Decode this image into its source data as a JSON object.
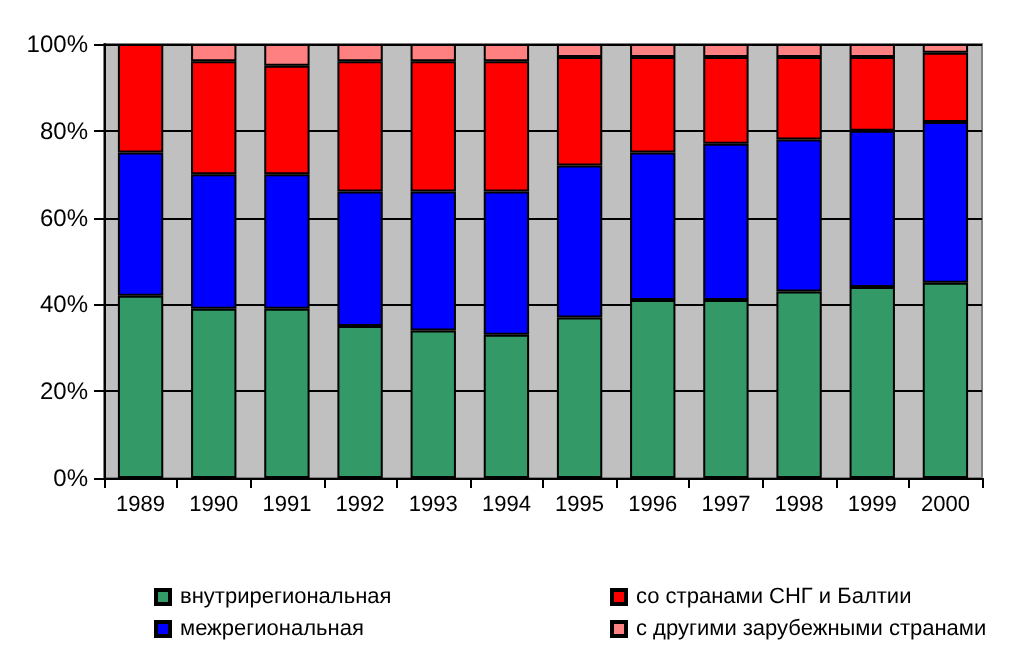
{
  "chart_data": {
    "type": "bar",
    "stacked": true,
    "categories": [
      "1989",
      "1990",
      "1991",
      "1992",
      "1993",
      "1994",
      "1995",
      "1996",
      "1997",
      "1998",
      "1999",
      "2000"
    ],
    "series": [
      {
        "name": "внутрирегиональная",
        "color": "#339966",
        "values": [
          42,
          39,
          39,
          35,
          34,
          33,
          37,
          41,
          41,
          43,
          44,
          45
        ]
      },
      {
        "name": "межрегиональная",
        "color": "#0000ff",
        "values": [
          33,
          31,
          31,
          31,
          32,
          33,
          35,
          34,
          36,
          35,
          36,
          37
        ]
      },
      {
        "name": "со странами СНГ и Балтии",
        "color": "#ff0000",
        "values": [
          25,
          26,
          25,
          30,
          30,
          30,
          25,
          22,
          20,
          19,
          17,
          16
        ]
      },
      {
        "name": "с другими зарубежными странами",
        "color": "#ff8080",
        "values": [
          null,
          4,
          5,
          4,
          4,
          4,
          3,
          3,
          3,
          3,
          3,
          2
        ]
      }
    ],
    "ylim": [
      0,
      100
    ],
    "yticks": [
      {
        "value": 0,
        "label": "0%"
      },
      {
        "value": 20,
        "label": "20%"
      },
      {
        "value": 40,
        "label": "40%"
      },
      {
        "value": 60,
        "label": "60%"
      },
      {
        "value": 80,
        "label": "80%"
      },
      {
        "value": 100,
        "label": "100%"
      }
    ],
    "grid": "y",
    "legend": "bottom"
  }
}
